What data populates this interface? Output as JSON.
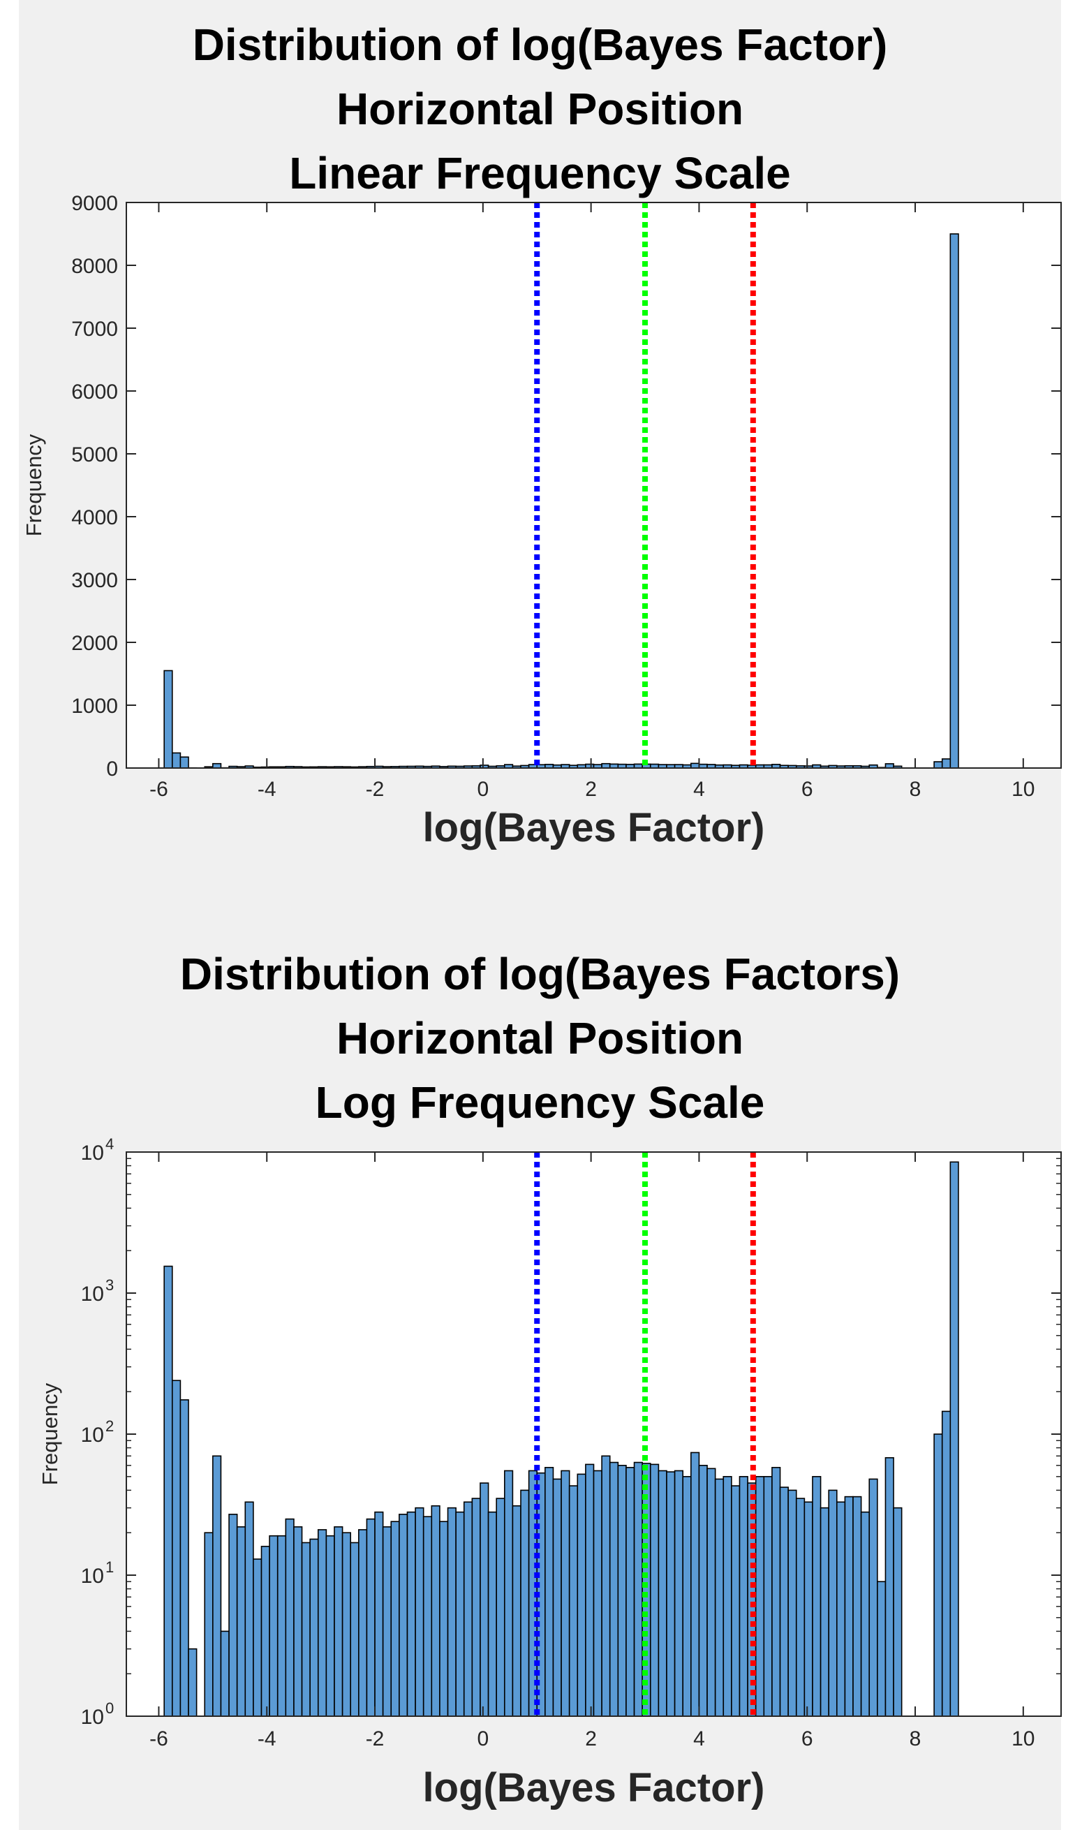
{
  "chart_data": [
    {
      "type": "bar",
      "title": [
        "Distribution of log(Bayes Factor)",
        "Horizontal Position",
        "Linear Frequency Scale"
      ],
      "xlabel": "log(Bayes Factor)",
      "ylabel": "Frequency",
      "xlim": [
        -6.6,
        10.7
      ],
      "ylim": [
        0,
        9000
      ],
      "yscale": "linear",
      "xticks": [
        -6,
        -4,
        -2,
        0,
        2,
        4,
        6,
        8,
        10
      ],
      "yticks": [
        0,
        1000,
        2000,
        3000,
        4000,
        5000,
        6000,
        7000,
        8000,
        9000
      ],
      "yticklabels": [
        "0",
        "1000",
        "2000",
        "3000",
        "4000",
        "5000",
        "6000",
        "7000",
        "8000",
        "9000"
      ],
      "bin_start": -5.9,
      "bin_width": 0.15,
      "values": [
        1550,
        240,
        175,
        3,
        0,
        20,
        70,
        4,
        27,
        22,
        33,
        13,
        16,
        19,
        19,
        25,
        22,
        17,
        18,
        21,
        19,
        22,
        20,
        17,
        21,
        25,
        28,
        22,
        24,
        27,
        28,
        30,
        26,
        31,
        24,
        30,
        28,
        33,
        35,
        45,
        28,
        35,
        55,
        31,
        40,
        55,
        53,
        58,
        48,
        55,
        43,
        52,
        61,
        55,
        70,
        63,
        60,
        58,
        63,
        62,
        61,
        55,
        54,
        55,
        50,
        74,
        60,
        57,
        48,
        50,
        43,
        50,
        45,
        50,
        50,
        58,
        42,
        40,
        35,
        33,
        50,
        30,
        40,
        33,
        36,
        36,
        28,
        48,
        9,
        68,
        30,
        0,
        0,
        0,
        0,
        100,
        145,
        8500
      ],
      "vlines": [
        {
          "x": 1,
          "color": "#0000ff",
          "style": "dotted"
        },
        {
          "x": 3,
          "color": "#00ff00",
          "style": "dotted"
        },
        {
          "x": 5,
          "color": "#ff0000",
          "style": "dotted"
        }
      ],
      "bar_color": "#5b9bd5",
      "edge_color": "#000000"
    },
    {
      "type": "bar",
      "title": [
        "Distribution of log(Bayes Factors)",
        "Horizontal Position",
        "Log Frequency Scale"
      ],
      "xlabel": "log(Bayes Factor)",
      "ylabel": "Frequency",
      "xlim": [
        -6.6,
        10.7
      ],
      "ylim": [
        1,
        10000
      ],
      "yscale": "log",
      "xticks": [
        -6,
        -4,
        -2,
        0,
        2,
        4,
        6,
        8,
        10
      ],
      "yticks": [
        1,
        10,
        100,
        1000,
        10000
      ],
      "yticklabels": [
        {
          "base": "10",
          "exp": "0"
        },
        {
          "base": "10",
          "exp": "1"
        },
        {
          "base": "10",
          "exp": "2"
        },
        {
          "base": "10",
          "exp": "3"
        },
        {
          "base": "10",
          "exp": "4"
        }
      ],
      "bin_start": -5.9,
      "bin_width": 0.15,
      "values": [
        1550,
        240,
        175,
        3,
        0,
        20,
        70,
        4,
        27,
        22,
        33,
        13,
        16,
        19,
        19,
        25,
        22,
        17,
        18,
        21,
        19,
        22,
        20,
        17,
        21,
        25,
        28,
        22,
        24,
        27,
        28,
        30,
        26,
        31,
        24,
        30,
        28,
        33,
        35,
        45,
        28,
        35,
        55,
        31,
        40,
        55,
        53,
        58,
        48,
        55,
        43,
        52,
        61,
        55,
        70,
        63,
        60,
        58,
        63,
        62,
        61,
        55,
        54,
        55,
        50,
        74,
        60,
        57,
        48,
        50,
        43,
        50,
        45,
        50,
        50,
        58,
        42,
        40,
        35,
        33,
        50,
        30,
        40,
        33,
        36,
        36,
        28,
        48,
        9,
        68,
        30,
        0,
        0,
        0,
        0,
        100,
        145,
        8500
      ],
      "vlines": [
        {
          "x": 1,
          "color": "#0000ff",
          "style": "dotted"
        },
        {
          "x": 3,
          "color": "#00ff00",
          "style": "dotted"
        },
        {
          "x": 5,
          "color": "#ff0000",
          "style": "dotted"
        }
      ],
      "bar_color": "#5b9bd5",
      "edge_color": "#000000"
    }
  ]
}
